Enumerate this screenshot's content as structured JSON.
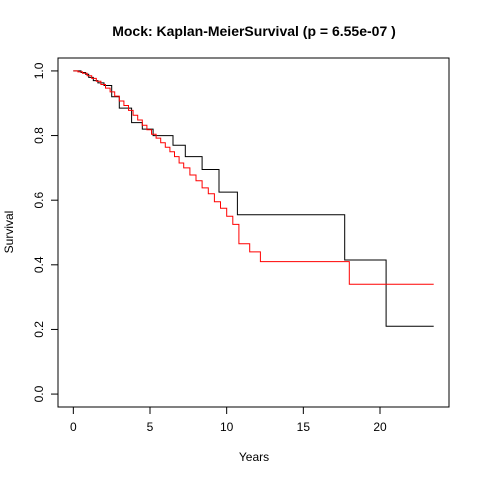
{
  "chart_data": {
    "type": "line",
    "title": "Mock:  Kaplan-MeierSurvival (p = 6.55e-07 )",
    "xlabel": "Years",
    "ylabel": "Survival",
    "xlim": [
      -1,
      24.5
    ],
    "ylim": [
      -0.04,
      1.04
    ],
    "x_ticks": [
      0,
      5,
      10,
      15,
      20
    ],
    "y_ticks": [
      0.0,
      0.2,
      0.4,
      0.6,
      0.8,
      1.0
    ],
    "x_tick_labels": [
      "0",
      "5",
      "10",
      "15",
      "20"
    ],
    "y_tick_labels": [
      "0.0",
      "0.2",
      "0.4",
      "0.6",
      "0.8",
      "1.0"
    ],
    "grid": false,
    "step": true,
    "series": [
      {
        "color": "#000000",
        "x": [
          0,
          0.5,
          0.8,
          1.0,
          1.3,
          1.6,
          2.0,
          2.5,
          3.0,
          3.8,
          4.5,
          5.2,
          6.5,
          7.3,
          8.4,
          9.5,
          10.7,
          17.7,
          20.4,
          23.5
        ],
        "y": [
          1.0,
          0.995,
          0.99,
          0.98,
          0.97,
          0.963,
          0.955,
          0.92,
          0.885,
          0.84,
          0.82,
          0.8,
          0.77,
          0.735,
          0.695,
          0.625,
          0.555,
          0.415,
          0.21,
          0.21
        ]
      },
      {
        "color": "#ff0000",
        "x": [
          0,
          0.3,
          0.6,
          0.9,
          1.2,
          1.5,
          1.8,
          2.1,
          2.4,
          2.7,
          3.0,
          3.3,
          3.6,
          3.9,
          4.2,
          4.5,
          4.8,
          5.1,
          5.4,
          5.7,
          6.0,
          6.3,
          6.6,
          6.9,
          7.2,
          7.6,
          8.0,
          8.4,
          8.8,
          9.2,
          9.6,
          10.0,
          10.4,
          10.8,
          11.5,
          12.2,
          18.0,
          23.5
        ],
        "y": [
          1.0,
          0.997,
          0.993,
          0.985,
          0.977,
          0.968,
          0.958,
          0.947,
          0.935,
          0.922,
          0.907,
          0.893,
          0.878,
          0.863,
          0.848,
          0.832,
          0.818,
          0.804,
          0.792,
          0.778,
          0.764,
          0.75,
          0.735,
          0.715,
          0.7,
          0.678,
          0.66,
          0.638,
          0.62,
          0.595,
          0.575,
          0.55,
          0.525,
          0.465,
          0.44,
          0.41,
          0.34,
          0.34
        ]
      }
    ]
  }
}
